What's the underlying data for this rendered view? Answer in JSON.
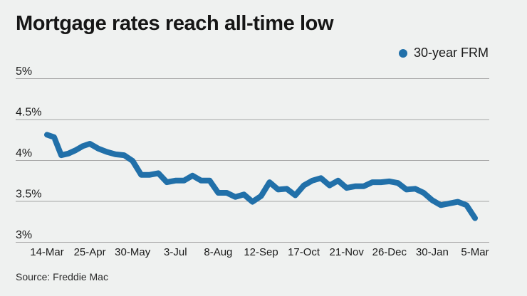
{
  "chart_data": {
    "type": "line",
    "title": "Mortgage rates reach all-time low",
    "source": "Source: Freddie Mac",
    "legend_position": "top-right",
    "grid": "horizontal",
    "background_color": "#eff1f0",
    "gridline_color": "#a6a6a6",
    "text_color": "#1a1a1a",
    "ylim": [
      3,
      5
    ],
    "y_ticks": [
      {
        "label": "5%",
        "value": 5.0
      },
      {
        "label": "4.5%",
        "value": 4.5
      },
      {
        "label": "4%",
        "value": 4.0
      },
      {
        "label": "3.5%",
        "value": 3.5
      },
      {
        "label": "3%",
        "value": 3.0
      }
    ],
    "x_tick_labels": [
      "14-Mar",
      "25-Apr",
      "30-May",
      "3-Jul",
      "8-Aug",
      "12-Sep",
      "17-Oct",
      "21-Nov",
      "26-Dec",
      "30-Jan",
      "5-Mar"
    ],
    "x_tick_point_index": [
      0,
      6,
      11,
      16,
      21,
      26,
      31,
      36,
      41,
      46,
      51
    ],
    "series": [
      {
        "name": "30-year FRM",
        "color": "#2170a9",
        "values": [
          4.31,
          4.28,
          4.06,
          4.08,
          4.12,
          4.17,
          4.2,
          4.14,
          4.1,
          4.07,
          4.06,
          3.99,
          3.82,
          3.82,
          3.84,
          3.73,
          3.75,
          3.75,
          3.81,
          3.75,
          3.75,
          3.6,
          3.6,
          3.55,
          3.58,
          3.49,
          3.56,
          3.73,
          3.64,
          3.65,
          3.57,
          3.69,
          3.75,
          3.78,
          3.69,
          3.75,
          3.66,
          3.68,
          3.68,
          3.73,
          3.73,
          3.74,
          3.72,
          3.64,
          3.65,
          3.6,
          3.51,
          3.45,
          3.47,
          3.49,
          3.45,
          3.29
        ]
      }
    ]
  }
}
